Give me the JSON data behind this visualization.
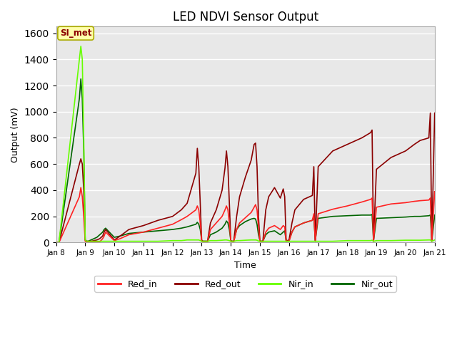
{
  "title": "LED NDVI Sensor Output",
  "xlabel": "Time",
  "ylabel": "Output (mV)",
  "annotation_text": "SI_met",
  "ylim": [
    0,
    1650
  ],
  "xlim": [
    0,
    13
  ],
  "bg_color": "#e8e8e8",
  "colors": {
    "Red_in": "#ff2222",
    "Red_out": "#8b0000",
    "Nir_in": "#66ff00",
    "Nir_out": "#006400"
  },
  "x_ticks_pos": [
    0,
    1,
    2,
    3,
    4,
    5,
    6,
    7,
    8,
    9,
    10,
    11,
    12,
    13
  ],
  "x_ticks_lbl": [
    "Jan 8",
    "Jan 9",
    "Jan 10",
    "Jan 11",
    "Jan 12",
    "Jan 13",
    "Jan 14",
    "Jan 15",
    "Jan 16",
    "Jan 17",
    "Jan 18",
    "Jan 19",
    "Jan 20",
    "Jan 21"
  ],
  "x": [
    0.0,
    0.1,
    0.8,
    0.85,
    0.9,
    0.95,
    1.0,
    1.05,
    1.1,
    1.2,
    1.4,
    1.5,
    1.6,
    1.65,
    1.7,
    2.0,
    2.2,
    2.5,
    3.0,
    3.5,
    4.0,
    4.3,
    4.5,
    4.8,
    4.85,
    4.9,
    4.95,
    5.0,
    5.05,
    5.1,
    5.2,
    5.3,
    5.5,
    5.7,
    5.8,
    5.85,
    5.9,
    5.95,
    6.0,
    6.05,
    6.1,
    6.2,
    6.3,
    6.5,
    6.7,
    6.8,
    6.85,
    6.9,
    6.95,
    7.0,
    7.05,
    7.1,
    7.2,
    7.3,
    7.5,
    7.7,
    7.8,
    7.85,
    7.9,
    8.0,
    8.1,
    8.2,
    8.5,
    8.8,
    8.85,
    8.9,
    9.0,
    9.5,
    10.0,
    10.5,
    10.8,
    10.85,
    10.9,
    11.0,
    11.5,
    12.0,
    12.3,
    12.5,
    12.8,
    12.85,
    12.9,
    13.0
  ],
  "Red_in": [
    0,
    0,
    350,
    420,
    350,
    200,
    10,
    5,
    5,
    5,
    5,
    5,
    30,
    50,
    80,
    15,
    30,
    60,
    80,
    110,
    140,
    175,
    200,
    250,
    280,
    250,
    150,
    10,
    5,
    5,
    5,
    100,
    150,
    200,
    250,
    280,
    250,
    150,
    10,
    5,
    5,
    100,
    150,
    190,
    230,
    270,
    290,
    250,
    120,
    10,
    5,
    5,
    80,
    110,
    130,
    100,
    130,
    120,
    10,
    10,
    80,
    120,
    150,
    170,
    220,
    10,
    220,
    255,
    280,
    310,
    330,
    340,
    10,
    270,
    295,
    305,
    315,
    320,
    325,
    340,
    10,
    390
  ],
  "Red_out": [
    0,
    0,
    600,
    640,
    600,
    400,
    20,
    10,
    10,
    10,
    20,
    30,
    50,
    80,
    100,
    20,
    50,
    100,
    130,
    170,
    200,
    250,
    300,
    530,
    720,
    580,
    300,
    15,
    10,
    10,
    10,
    150,
    250,
    400,
    570,
    700,
    580,
    300,
    10,
    10,
    10,
    200,
    350,
    500,
    630,
    750,
    760,
    580,
    200,
    10,
    10,
    10,
    250,
    350,
    420,
    340,
    410,
    350,
    10,
    20,
    150,
    250,
    330,
    360,
    580,
    10,
    580,
    700,
    750,
    800,
    840,
    860,
    10,
    560,
    650,
    700,
    750,
    780,
    800,
    990,
    10,
    990
  ],
  "Nir_in": [
    0,
    0,
    1400,
    1500,
    1400,
    800,
    20,
    10,
    10,
    10,
    10,
    10,
    10,
    10,
    10,
    10,
    10,
    10,
    10,
    10,
    15,
    15,
    20,
    20,
    20,
    20,
    15,
    10,
    10,
    10,
    10,
    15,
    15,
    18,
    20,
    20,
    18,
    15,
    10,
    10,
    10,
    15,
    15,
    18,
    20,
    20,
    20,
    18,
    12,
    10,
    10,
    10,
    10,
    10,
    10,
    10,
    10,
    10,
    10,
    10,
    10,
    10,
    10,
    10,
    10,
    10,
    10,
    10,
    15,
    15,
    15,
    18,
    10,
    15,
    15,
    18,
    18,
    18,
    20,
    20,
    10,
    20
  ],
  "Nir_out": [
    0,
    0,
    1100,
    1250,
    1100,
    700,
    20,
    10,
    10,
    20,
    40,
    60,
    80,
    100,
    110,
    40,
    50,
    70,
    80,
    90,
    100,
    110,
    120,
    140,
    155,
    140,
    100,
    15,
    10,
    10,
    10,
    60,
    80,
    110,
    140,
    165,
    150,
    100,
    15,
    10,
    10,
    100,
    130,
    160,
    180,
    185,
    180,
    140,
    60,
    15,
    10,
    10,
    60,
    80,
    90,
    60,
    80,
    90,
    15,
    15,
    80,
    120,
    150,
    170,
    200,
    15,
    185,
    200,
    205,
    210,
    210,
    215,
    15,
    185,
    190,
    195,
    200,
    200,
    205,
    210,
    15,
    210
  ]
}
